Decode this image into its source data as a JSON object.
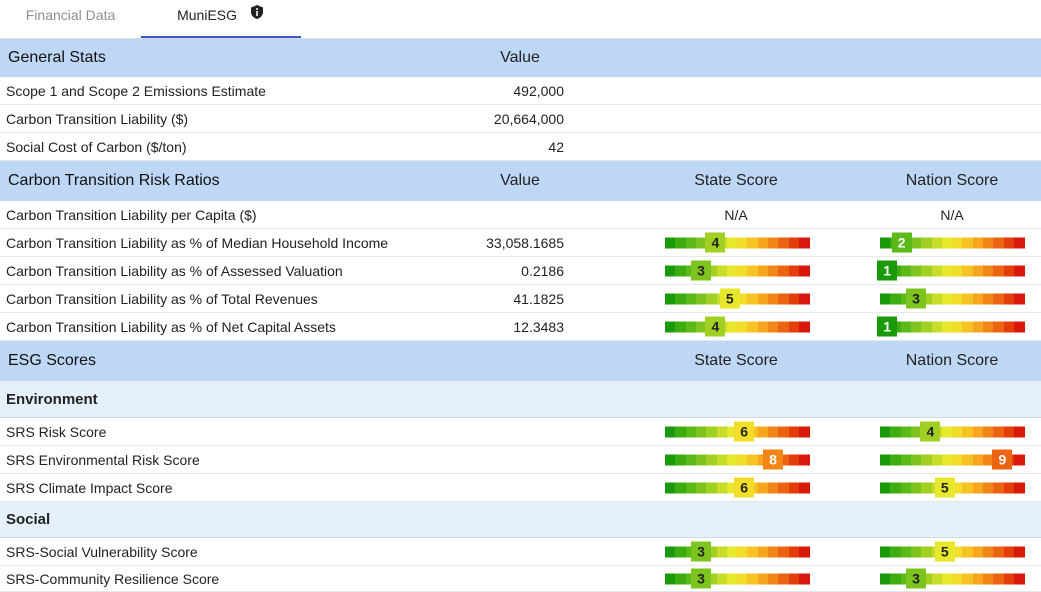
{
  "tabs": [
    {
      "label": "Financial Data"
    },
    {
      "label": "MuniESG"
    }
  ],
  "icons": {
    "info": "info-icon"
  },
  "scale_colors": [
    "#1a9a0b",
    "#3cac11",
    "#5bb918",
    "#7ec41f",
    "#a1cf22",
    "#c7dd2a",
    "#e7e72c",
    "#f2de2a",
    "#f7c224",
    "#f7a41f",
    "#f28518",
    "#ec6311",
    "#e23d0b",
    "#d9170a"
  ],
  "general": {
    "header": {
      "label": "General Stats",
      "value": "Value"
    },
    "rows": [
      {
        "label": "Scope 1 and Scope 2 Emissions Estimate",
        "value": "492,000"
      },
      {
        "label": "Carbon Transition Liability ($)",
        "value": "20,664,000"
      },
      {
        "label": "Social Cost of Carbon ($/ton)",
        "value": "42"
      }
    ]
  },
  "risk": {
    "header": {
      "label": "Carbon Transition Risk Ratios",
      "value": "Value",
      "state": "State Score",
      "nation": "Nation Score"
    },
    "rows": [
      {
        "label": "Carbon Transition Liability per Capita ($)",
        "value": "",
        "state_text": "N/A",
        "nation_text": "N/A"
      },
      {
        "label": "Carbon Transition Liability as % of Median Household Income",
        "value": "33,058.1685",
        "state": 4,
        "nation": 2
      },
      {
        "label": "Carbon Transition Liability as % of Assessed Valuation",
        "value": "0.2186",
        "state": 3,
        "nation": 1
      },
      {
        "label": "Carbon Transition Liability as % of Total Revenues",
        "value": "41.1825",
        "state": 5,
        "nation": 3
      },
      {
        "label": "Carbon Transition Liability as % of Net Capital Assets",
        "value": "12.3483",
        "state": 4,
        "nation": 1
      }
    ]
  },
  "esg": {
    "header": {
      "label": "ESG Scores",
      "state": "State Score",
      "nation": "Nation Score"
    },
    "environment": {
      "label": "Environment",
      "rows": [
        {
          "label": "SRS Risk Score",
          "state": 6,
          "nation": 4
        },
        {
          "label": "SRS Environmental Risk Score",
          "state": 8,
          "nation": 9
        },
        {
          "label": "SRS Climate Impact Score",
          "state": 6,
          "nation": 5
        }
      ]
    },
    "social": {
      "label": "Social",
      "rows": [
        {
          "label": "SRS-Social Vulnerability Score",
          "state": 3,
          "nation": 5
        },
        {
          "label": "SRS-Community Resilience Score",
          "state": 3,
          "nation": 3
        }
      ]
    }
  }
}
